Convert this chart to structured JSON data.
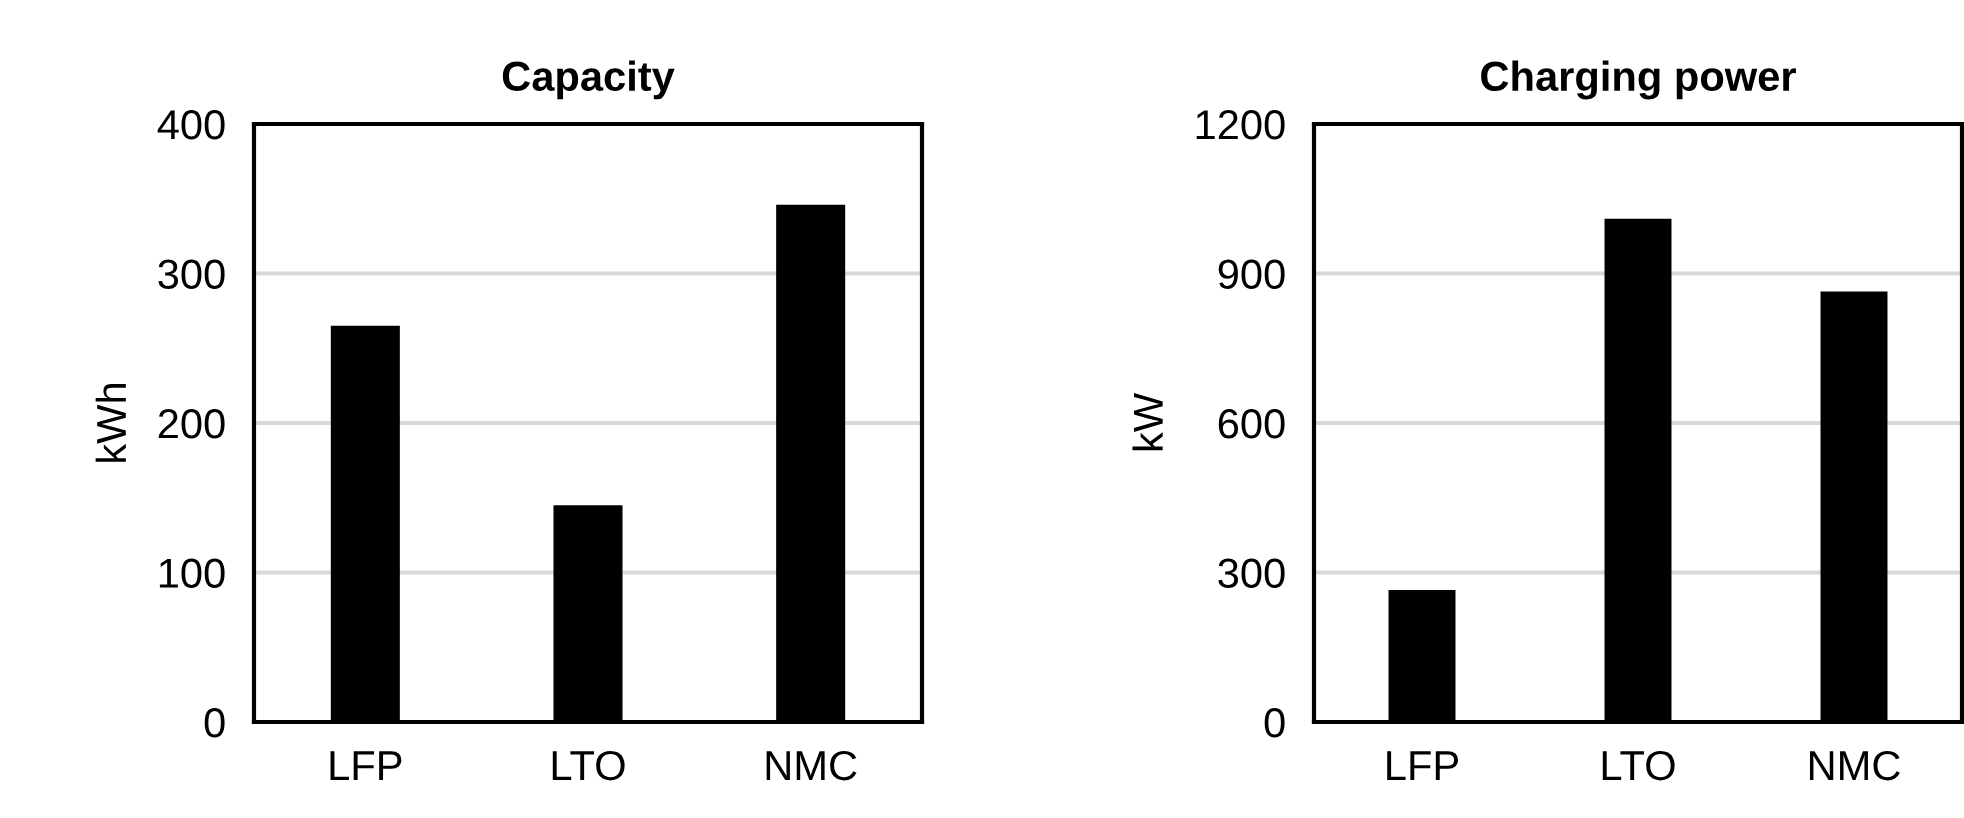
{
  "chart_data": [
    {
      "type": "bar",
      "title": "Capacity",
      "ylabel": "kWh",
      "categories": [
        "LFP",
        "LTO",
        "NMC"
      ],
      "values": [
        265,
        145,
        346
      ],
      "color": "#000000",
      "ylim": [
        0,
        400
      ],
      "yticks": [
        0,
        100,
        200,
        300,
        400
      ],
      "grid": "y",
      "legend": false
    },
    {
      "type": "bar",
      "title": "Charging power",
      "ylabel": "kW",
      "categories": [
        "LFP",
        "LTO",
        "NMC"
      ],
      "values": [
        265,
        1010,
        864
      ],
      "color": "#000000",
      "ylim": [
        0,
        1200
      ],
      "yticks": [
        0,
        300,
        600,
        900,
        1200
      ],
      "grid": "y",
      "legend": false
    }
  ]
}
